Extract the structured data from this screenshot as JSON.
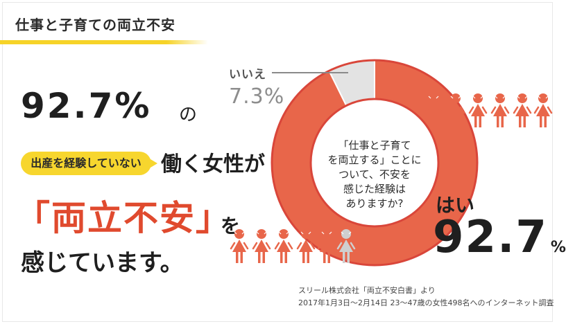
{
  "header": {
    "title": "仕事と子育ての両立不安"
  },
  "headline": {
    "percent": "92.7%",
    "particle": "の",
    "tag": "出産を経験していない",
    "subject": "働く女性が",
    "keyword": "「両立不安」",
    "keyword_particle": "を",
    "conclusion": "感じています。"
  },
  "chart_data": {
    "type": "pie",
    "style": "donut",
    "question": "「仕事と子育て\nを両立する」ことに\nついて、不安を\n感じた経験は\nありますか?",
    "series": [
      {
        "name": "はい",
        "value": 92.7,
        "color": "#e8664a"
      },
      {
        "name": "いいえ",
        "value": 7.3,
        "color": "#e3e3e3"
      }
    ],
    "labels": {
      "yes_label": "はい",
      "yes_value": "92.7",
      "yes_unit": "%",
      "no_label": "いいえ",
      "no_value": "7.3%"
    }
  },
  "source": {
    "line1": "スリール株式会社「両立不安白書」より",
    "line2": "2017年1月3日〜2月14日 23〜47歳の女性498名へのインターネット調査"
  },
  "colors": {
    "accent_yellow": "#f7d62e",
    "accent_red": "#e04a2e",
    "slice_yes": "#e8664a",
    "slice_no": "#e3e3e3",
    "person_orange": "#e8664a",
    "person_gray": "#cfcfcf"
  },
  "icons": {
    "person": "person-icon"
  }
}
